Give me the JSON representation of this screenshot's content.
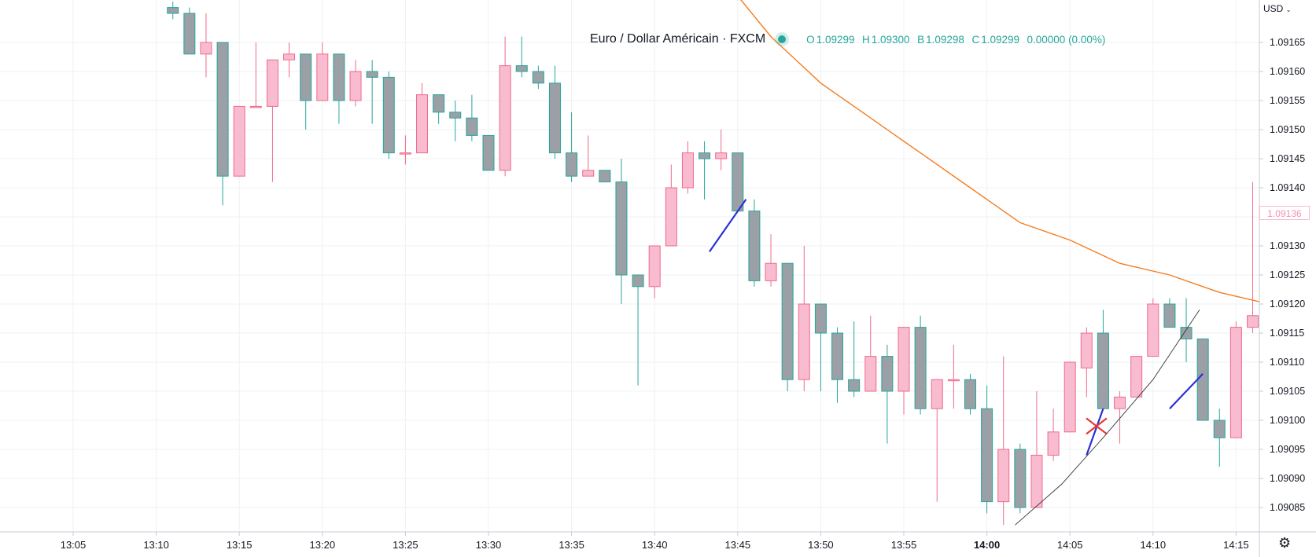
{
  "legend": {
    "symbol": "Euro / Dollar Américain · FXCM",
    "open_label": "O",
    "open": "1.09299",
    "high_label": "H",
    "high": "1.09300",
    "low_label": "B",
    "low": "1.09298",
    "close_label": "C",
    "close": "1.09299",
    "change": "0.00000 (0.00%)"
  },
  "currency_menu": "USD",
  "current_price_label": "1.09136",
  "settings_icon": "gear-icon",
  "colors": {
    "up": "#f8bbd0",
    "up_border": "#ef6b8a",
    "down": "#9aa0a6",
    "down_border": "#26a69a",
    "ma": "#f57c1f",
    "drawing_blue": "#2b2fd6",
    "drawing_red": "#e53935"
  },
  "chart_data": {
    "type": "candlestick",
    "title": "Euro / Dollar Américain · FXCM",
    "interval_minutes": 1,
    "ylim": [
      1.09083,
      1.09171
    ],
    "y_ticks": [
      "1.09085",
      "1.09090",
      "1.09095",
      "1.09100",
      "1.09105",
      "1.09110",
      "1.09115",
      "1.09120",
      "1.09125",
      "1.09130",
      "1.09135",
      "1.09140",
      "1.09145",
      "1.09150",
      "1.09155",
      "1.09160",
      "1.09165"
    ],
    "x_ticks": [
      "13:05",
      "13:10",
      "13:15",
      "13:20",
      "13:25",
      "13:30",
      "13:35",
      "13:40",
      "13:45",
      "13:50",
      "13:55",
      "14:00",
      "14:05",
      "14:10",
      "14:15"
    ],
    "x_tick_bold": "14:00",
    "candles": [
      {
        "t": "13:11",
        "o": 1.09171,
        "h": 1.09172,
        "l": 1.09169,
        "c": 1.0917
      },
      {
        "t": "13:12",
        "o": 1.0917,
        "h": 1.09171,
        "l": 1.09163,
        "c": 1.09163
      },
      {
        "t": "13:13",
        "o": 1.09163,
        "h": 1.0917,
        "l": 1.09159,
        "c": 1.09165
      },
      {
        "t": "13:14",
        "o": 1.09165,
        "h": 1.09165,
        "l": 1.09137,
        "c": 1.09142
      },
      {
        "t": "13:15",
        "o": 1.09142,
        "h": 1.09154,
        "l": 1.09142,
        "c": 1.09154
      },
      {
        "t": "13:16",
        "o": 1.09154,
        "h": 1.09165,
        "l": 1.09154,
        "c": 1.09154
      },
      {
        "t": "13:17",
        "o": 1.09154,
        "h": 1.09162,
        "l": 1.09141,
        "c": 1.09162
      },
      {
        "t": "13:18",
        "o": 1.09162,
        "h": 1.09165,
        "l": 1.09159,
        "c": 1.09163
      },
      {
        "t": "13:19",
        "o": 1.09163,
        "h": 1.09163,
        "l": 1.0915,
        "c": 1.09155
      },
      {
        "t": "13:20",
        "o": 1.09155,
        "h": 1.09165,
        "l": 1.09155,
        "c": 1.09163
      },
      {
        "t": "13:21",
        "o": 1.09163,
        "h": 1.09163,
        "l": 1.09151,
        "c": 1.09155
      },
      {
        "t": "13:22",
        "o": 1.09155,
        "h": 1.09162,
        "l": 1.09154,
        "c": 1.0916
      },
      {
        "t": "13:23",
        "o": 1.0916,
        "h": 1.09162,
        "l": 1.09151,
        "c": 1.09159
      },
      {
        "t": "13:24",
        "o": 1.09159,
        "h": 1.0916,
        "l": 1.09145,
        "c": 1.09146
      },
      {
        "t": "13:25",
        "o": 1.09146,
        "h": 1.09149,
        "l": 1.09144,
        "c": 1.09146
      },
      {
        "t": "13:26",
        "o": 1.09146,
        "h": 1.09158,
        "l": 1.09146,
        "c": 1.09156
      },
      {
        "t": "13:27",
        "o": 1.09156,
        "h": 1.09156,
        "l": 1.09151,
        "c": 1.09153
      },
      {
        "t": "13:28",
        "o": 1.09153,
        "h": 1.09155,
        "l": 1.09148,
        "c": 1.09152
      },
      {
        "t": "13:29",
        "o": 1.09152,
        "h": 1.09156,
        "l": 1.09148,
        "c": 1.09149
      },
      {
        "t": "13:30",
        "o": 1.09149,
        "h": 1.09149,
        "l": 1.09143,
        "c": 1.09143
      },
      {
        "t": "13:31",
        "o": 1.09143,
        "h": 1.09166,
        "l": 1.09142,
        "c": 1.09161
      },
      {
        "t": "13:32",
        "o": 1.09161,
        "h": 1.09166,
        "l": 1.09159,
        "c": 1.0916
      },
      {
        "t": "13:33",
        "o": 1.0916,
        "h": 1.09161,
        "l": 1.09157,
        "c": 1.09158
      },
      {
        "t": "13:34",
        "o": 1.09158,
        "h": 1.09161,
        "l": 1.09145,
        "c": 1.09146
      },
      {
        "t": "13:35",
        "o": 1.09146,
        "h": 1.09153,
        "l": 1.09141,
        "c": 1.09142
      },
      {
        "t": "13:36",
        "o": 1.09142,
        "h": 1.09149,
        "l": 1.09142,
        "c": 1.09143
      },
      {
        "t": "13:37",
        "o": 1.09143,
        "h": 1.09143,
        "l": 1.09141,
        "c": 1.09141
      },
      {
        "t": "13:38",
        "o": 1.09141,
        "h": 1.09145,
        "l": 1.0912,
        "c": 1.09125
      },
      {
        "t": "13:39",
        "o": 1.09125,
        "h": 1.09125,
        "l": 1.09106,
        "c": 1.09123
      },
      {
        "t": "13:40",
        "o": 1.09123,
        "h": 1.0913,
        "l": 1.09121,
        "c": 1.0913
      },
      {
        "t": "13:41",
        "o": 1.0913,
        "h": 1.09144,
        "l": 1.0913,
        "c": 1.0914
      },
      {
        "t": "13:42",
        "o": 1.0914,
        "h": 1.09148,
        "l": 1.09139,
        "c": 1.09146
      },
      {
        "t": "13:43",
        "o": 1.09146,
        "h": 1.09148,
        "l": 1.09138,
        "c": 1.09145
      },
      {
        "t": "13:44",
        "o": 1.09145,
        "h": 1.0915,
        "l": 1.09143,
        "c": 1.09146
      },
      {
        "t": "13:45",
        "o": 1.09146,
        "h": 1.09146,
        "l": 1.09136,
        "c": 1.09136
      },
      {
        "t": "13:46",
        "o": 1.09136,
        "h": 1.09138,
        "l": 1.09123,
        "c": 1.09124
      },
      {
        "t": "13:47",
        "o": 1.09124,
        "h": 1.09132,
        "l": 1.09123,
        "c": 1.09127
      },
      {
        "t": "13:48",
        "o": 1.09127,
        "h": 1.09127,
        "l": 1.09105,
        "c": 1.09107
      },
      {
        "t": "13:49",
        "o": 1.09107,
        "h": 1.0913,
        "l": 1.09105,
        "c": 1.0912
      },
      {
        "t": "13:50",
        "o": 1.0912,
        "h": 1.0912,
        "l": 1.09105,
        "c": 1.09115
      },
      {
        "t": "13:51",
        "o": 1.09115,
        "h": 1.09116,
        "l": 1.09103,
        "c": 1.09107
      },
      {
        "t": "13:52",
        "o": 1.09107,
        "h": 1.09117,
        "l": 1.09104,
        "c": 1.09105
      },
      {
        "t": "13:53",
        "o": 1.09105,
        "h": 1.09118,
        "l": 1.09105,
        "c": 1.09111
      },
      {
        "t": "13:54",
        "o": 1.09111,
        "h": 1.09113,
        "l": 1.09096,
        "c": 1.09105
      },
      {
        "t": "13:55",
        "o": 1.09105,
        "h": 1.09116,
        "l": 1.09101,
        "c": 1.09116
      },
      {
        "t": "13:56",
        "o": 1.09116,
        "h": 1.09118,
        "l": 1.09101,
        "c": 1.09102
      },
      {
        "t": "13:57",
        "o": 1.09102,
        "h": 1.09107,
        "l": 1.09086,
        "c": 1.09107
      },
      {
        "t": "13:58",
        "o": 1.09107,
        "h": 1.09113,
        "l": 1.09102,
        "c": 1.09107
      },
      {
        "t": "13:59",
        "o": 1.09107,
        "h": 1.09108,
        "l": 1.09101,
        "c": 1.09102
      },
      {
        "t": "14:00",
        "o": 1.09102,
        "h": 1.09106,
        "l": 1.09084,
        "c": 1.09086
      },
      {
        "t": "14:01",
        "o": 1.09086,
        "h": 1.09111,
        "l": 1.09082,
        "c": 1.09095
      },
      {
        "t": "14:02",
        "o": 1.09095,
        "h": 1.09096,
        "l": 1.09084,
        "c": 1.09085
      },
      {
        "t": "14:03",
        "o": 1.09085,
        "h": 1.09105,
        "l": 1.09085,
        "c": 1.09094
      },
      {
        "t": "14:04",
        "o": 1.09094,
        "h": 1.09102,
        "l": 1.09093,
        "c": 1.09098
      },
      {
        "t": "14:05",
        "o": 1.09098,
        "h": 1.0911,
        "l": 1.09098,
        "c": 1.0911
      },
      {
        "t": "14:06",
        "o": 1.09109,
        "h": 1.09116,
        "l": 1.09104,
        "c": 1.09115
      },
      {
        "t": "14:07",
        "o": 1.09115,
        "h": 1.09119,
        "l": 1.09102,
        "c": 1.09102
      },
      {
        "t": "14:08",
        "o": 1.09102,
        "h": 1.09105,
        "l": 1.09096,
        "c": 1.09104
      },
      {
        "t": "14:09",
        "o": 1.09104,
        "h": 1.09111,
        "l": 1.09104,
        "c": 1.09111
      },
      {
        "t": "14:10",
        "o": 1.09111,
        "h": 1.09121,
        "l": 1.09111,
        "c": 1.0912
      },
      {
        "t": "14:11",
        "o": 1.0912,
        "h": 1.09121,
        "l": 1.09116,
        "c": 1.09116
      },
      {
        "t": "14:12",
        "o": 1.09116,
        "h": 1.09121,
        "l": 1.0911,
        "c": 1.09114
      },
      {
        "t": "14:13",
        "o": 1.09114,
        "h": 1.09114,
        "l": 1.091,
        "c": 1.091
      },
      {
        "t": "14:14",
        "o": 1.091,
        "h": 1.09102,
        "l": 1.09092,
        "c": 1.09097
      },
      {
        "t": "14:15",
        "o": 1.09097,
        "h": 1.09117,
        "l": 1.09097,
        "c": 1.09116
      },
      {
        "t": "14:16",
        "o": 1.09116,
        "h": 1.09141,
        "l": 1.09115,
        "c": 1.09118
      }
    ],
    "moving_average": [
      {
        "t": "13:45",
        "v": 1.09173
      },
      {
        "t": "13:47",
        "v": 1.09166
      },
      {
        "t": "13:50",
        "v": 1.09158
      },
      {
        "t": "13:53",
        "v": 1.09152
      },
      {
        "t": "13:56",
        "v": 1.09146
      },
      {
        "t": "13:59",
        "v": 1.0914
      },
      {
        "t": "14:02",
        "v": 1.09134
      },
      {
        "t": "14:05",
        "v": 1.09131
      },
      {
        "t": "14:08",
        "v": 1.09127
      },
      {
        "t": "14:11",
        "v": 1.09125
      },
      {
        "t": "14:14",
        "v": 1.09122
      },
      {
        "t": "14:17",
        "v": 1.0912
      }
    ],
    "drawings": [
      {
        "kind": "line",
        "color": "blue",
        "from": {
          "t": "13:43.3",
          "v": 1.09129
        },
        "to": {
          "t": "13:45.5",
          "v": 1.09138
        }
      },
      {
        "kind": "line",
        "color": "blue",
        "from": {
          "t": "14:06",
          "v": 1.09094
        },
        "to": {
          "t": "14:07",
          "v": 1.09102
        }
      },
      {
        "kind": "line",
        "color": "blue",
        "from": {
          "t": "14:11",
          "v": 1.09102
        },
        "to": {
          "t": "14:13",
          "v": 1.09108
        }
      },
      {
        "kind": "cross",
        "color": "red",
        "at": {
          "t": "14:06.6",
          "v": 1.09099
        }
      },
      {
        "kind": "curve",
        "color": "black",
        "points": [
          {
            "t": "14:01.7",
            "v": 1.09082
          },
          {
            "t": "14:04.5",
            "v": 1.09089
          },
          {
            "t": "14:07",
            "v": 1.09097
          },
          {
            "t": "14:10",
            "v": 1.09107
          },
          {
            "t": "14:12.8",
            "v": 1.09119
          }
        ]
      }
    ]
  }
}
